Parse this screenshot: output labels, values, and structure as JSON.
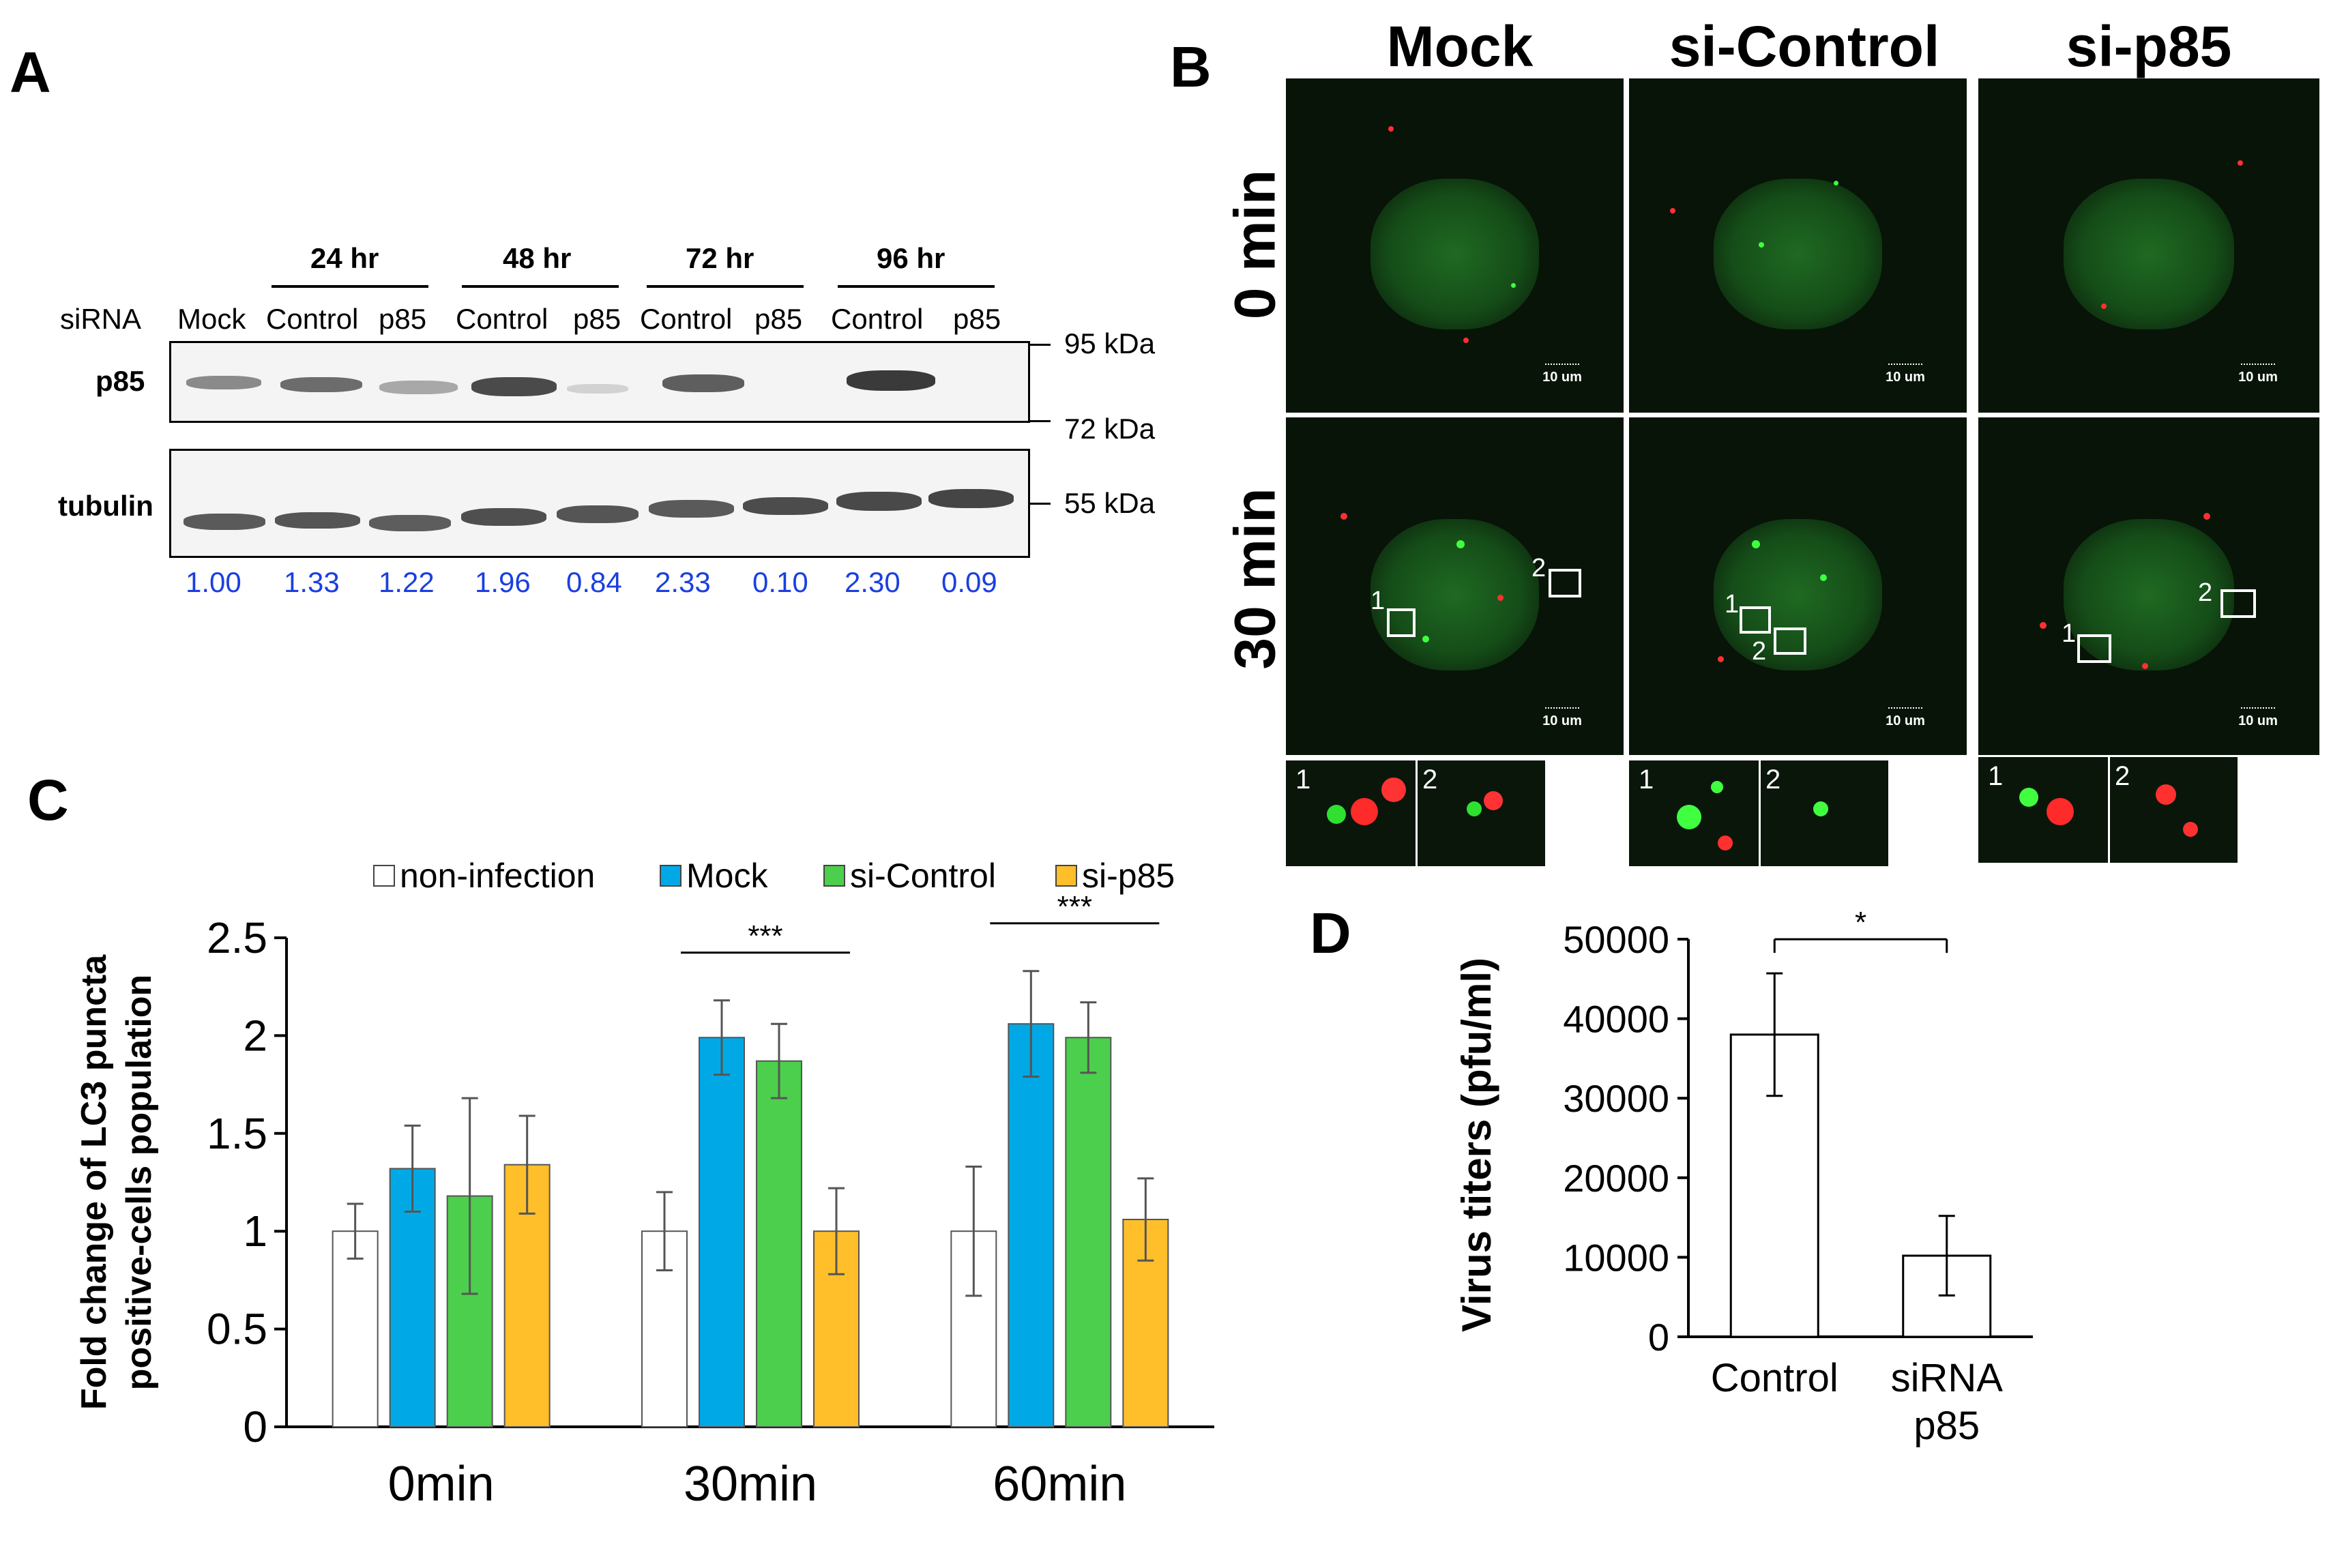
{
  "panels": {
    "A": "A",
    "B": "B",
    "C": "C",
    "D": "D"
  },
  "blot": {
    "timepoints": [
      "24 hr",
      "48 hr",
      "72 hr",
      "96 hr"
    ],
    "sirna_label": "siRNA",
    "lanes": [
      "Mock",
      "Control",
      "p85",
      "Control",
      "p85",
      "Control",
      "p85",
      "Control",
      "p85"
    ],
    "rows": [
      "p85",
      "tubulin"
    ],
    "markers": [
      "95 kDa",
      "72 kDa",
      "55 kDa"
    ],
    "quant": [
      "1.00",
      "1.33",
      "1.22",
      "1.96",
      "0.84",
      "2.33",
      "0.10",
      "2.30",
      "0.09"
    ],
    "quant_color": "#1a3fe0"
  },
  "microscopy": {
    "columns": [
      "Mock",
      "si-Control",
      "si-p85"
    ],
    "rows": [
      "0 min",
      "30 min"
    ],
    "scale_label": "10 um",
    "roi_labels": [
      "1",
      "2"
    ]
  },
  "chart_data": [
    {
      "type": "bar",
      "panel": "C",
      "categories": [
        "0min",
        "30min",
        "60min"
      ],
      "series": [
        {
          "name": "non-infection",
          "color": "#ffffff",
          "values": [
            1.0,
            1.0,
            1.0
          ],
          "errors": [
            0.14,
            0.2,
            0.33
          ]
        },
        {
          "name": "Mock",
          "color": "#00a9e6",
          "values": [
            1.32,
            1.99,
            2.06
          ],
          "errors": [
            0.22,
            0.19,
            0.27
          ]
        },
        {
          "name": "si-Control",
          "color": "#4ccf4c",
          "values": [
            1.18,
            1.87,
            1.99
          ],
          "errors": [
            0.5,
            0.19,
            0.18
          ]
        },
        {
          "name": "si-p85",
          "color": "#ffbf2a",
          "values": [
            1.34,
            1.0,
            1.06
          ],
          "errors": [
            0.25,
            0.22,
            0.21
          ]
        }
      ],
      "ylabel_line1": "Fold change of LC3 puncta",
      "ylabel_line2": "positive-cells population",
      "ylim": [
        0,
        2.5
      ],
      "yticks": [
        "0",
        "0.5",
        "1",
        "1.5",
        "2",
        "2.5"
      ],
      "significance": [
        {
          "category": "30min",
          "label": "***"
        },
        {
          "category": "60min",
          "label": "***"
        }
      ],
      "grid": false,
      "legend": "top"
    },
    {
      "type": "bar",
      "panel": "D",
      "categories": [
        "Control",
        "siRNA\np85"
      ],
      "category_lines": [
        [
          "Control"
        ],
        [
          "siRNA",
          "p85"
        ]
      ],
      "values": [
        38000,
        10200
      ],
      "errors": [
        7700,
        5000
      ],
      "ylabel": "Virus titers (pfu/ml)",
      "ylim": [
        0,
        50000
      ],
      "yticks": [
        "0",
        "10000",
        "20000",
        "30000",
        "40000",
        "50000"
      ],
      "significance": [
        {
          "label": "*"
        }
      ],
      "grid": false
    }
  ]
}
